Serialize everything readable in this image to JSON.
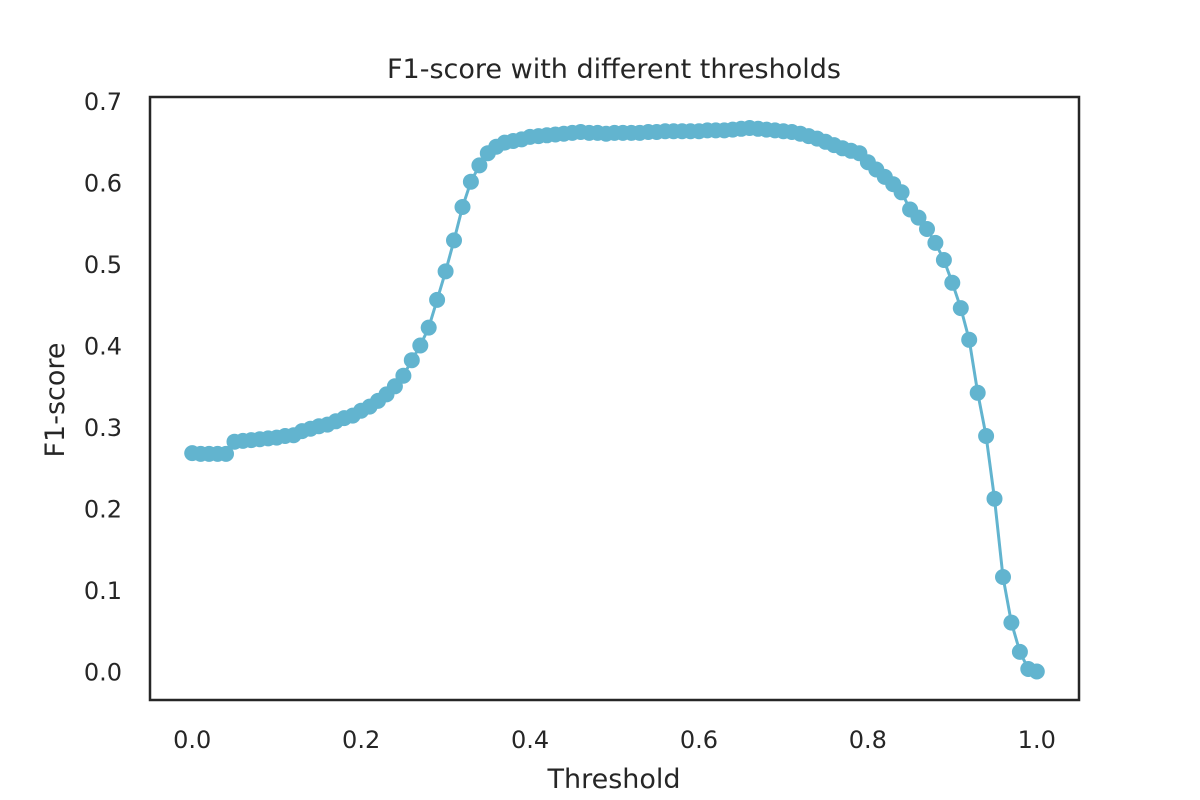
{
  "chart_data": {
    "type": "line",
    "title": "F1-score with different thresholds",
    "xlabel": "Threshold",
    "ylabel": "F1-score",
    "xlim": [
      -0.05,
      1.05
    ],
    "ylim": [
      -0.035,
      0.705
    ],
    "xticks": [
      "0.0",
      "0.2",
      "0.4",
      "0.6",
      "0.8",
      "1.0"
    ],
    "yticks": [
      "0.0",
      "0.1",
      "0.2",
      "0.3",
      "0.4",
      "0.5",
      "0.6",
      "0.7"
    ],
    "grid": false,
    "color": "#62b4cf",
    "series": [
      {
        "x": [
          0.0,
          0.01,
          0.02,
          0.03,
          0.04,
          0.05,
          0.06,
          0.07,
          0.08,
          0.09,
          0.1,
          0.11,
          0.12,
          0.13,
          0.14,
          0.15,
          0.16,
          0.17,
          0.18,
          0.19,
          0.2,
          0.21,
          0.22,
          0.23,
          0.24,
          0.25,
          0.26,
          0.27,
          0.28,
          0.29,
          0.3,
          0.31,
          0.32,
          0.33,
          0.34,
          0.35,
          0.36,
          0.37,
          0.38,
          0.39,
          0.4,
          0.41,
          0.42,
          0.43,
          0.44,
          0.45,
          0.46,
          0.47,
          0.48,
          0.49,
          0.5,
          0.51,
          0.52,
          0.53,
          0.54,
          0.55,
          0.56,
          0.57,
          0.58,
          0.59,
          0.6,
          0.61,
          0.62,
          0.63,
          0.64,
          0.65,
          0.66,
          0.67,
          0.68,
          0.69,
          0.7,
          0.71,
          0.72,
          0.73,
          0.74,
          0.75,
          0.76,
          0.77,
          0.78,
          0.79,
          0.8,
          0.81,
          0.82,
          0.83,
          0.84,
          0.85,
          0.86,
          0.87,
          0.88,
          0.89,
          0.9,
          0.91,
          0.92,
          0.93,
          0.94,
          0.95,
          0.96,
          0.97,
          0.98,
          0.99,
          1.0
        ],
        "y": [
          0.268,
          0.267,
          0.267,
          0.267,
          0.267,
          0.282,
          0.283,
          0.284,
          0.285,
          0.286,
          0.287,
          0.289,
          0.29,
          0.295,
          0.298,
          0.301,
          0.303,
          0.307,
          0.311,
          0.314,
          0.32,
          0.325,
          0.332,
          0.34,
          0.35,
          0.363,
          0.382,
          0.4,
          0.422,
          0.456,
          0.491,
          0.529,
          0.57,
          0.601,
          0.621,
          0.636,
          0.644,
          0.649,
          0.651,
          0.653,
          0.656,
          0.657,
          0.658,
          0.659,
          0.66,
          0.661,
          0.662,
          0.661,
          0.661,
          0.66,
          0.661,
          0.661,
          0.661,
          0.661,
          0.662,
          0.662,
          0.663,
          0.663,
          0.663,
          0.663,
          0.663,
          0.664,
          0.664,
          0.664,
          0.665,
          0.666,
          0.667,
          0.666,
          0.665,
          0.664,
          0.663,
          0.662,
          0.66,
          0.657,
          0.654,
          0.65,
          0.646,
          0.642,
          0.639,
          0.636,
          0.625,
          0.616,
          0.607,
          0.598,
          0.588,
          0.567,
          0.557,
          0.543,
          0.526,
          0.505,
          0.477,
          0.446,
          0.407,
          0.342,
          0.289,
          0.212,
          0.116,
          0.06,
          0.024,
          0.003,
          0.0
        ]
      }
    ]
  }
}
